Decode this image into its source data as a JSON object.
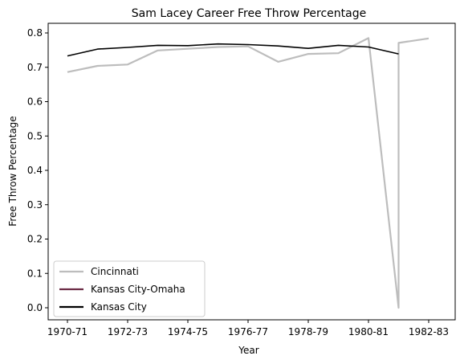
{
  "chart_data": {
    "type": "line",
    "title": "Sam Lacey Career Free Throw Percentage",
    "xlabel": "Year",
    "ylabel": "Free Throw Percentage",
    "x_tick_labels": [
      "1970-71",
      "1972-73",
      "1974-75",
      "1976-77",
      "1978-79",
      "1980-81",
      "1982-83"
    ],
    "y_tick_labels": [
      "0.0",
      "0.1",
      "0.2",
      "0.3",
      "0.4",
      "0.5",
      "0.6",
      "0.7",
      "0.8"
    ],
    "xlim": [
      "1970-71",
      "1982-83"
    ],
    "ylim": [
      0,
      0.8
    ],
    "grid": false,
    "legend_position": "lower-left",
    "series": [
      {
        "name": "Cincinnati",
        "color": "#bdbdbd",
        "points": [
          {
            "x": "1970-71",
            "y": 0.686
          },
          {
            "x": "1971-72",
            "y": 0.704
          },
          {
            "x": "1972-73",
            "y": 0.708
          },
          {
            "x": "1973-74",
            "y": 0.749
          },
          {
            "x": "1974-75",
            "y": 0.754
          },
          {
            "x": "1975-76",
            "y": 0.759
          },
          {
            "x": "1976-77",
            "y": 0.761
          },
          {
            "x": "1977-78",
            "y": 0.716
          },
          {
            "x": "1978-79",
            "y": 0.739
          },
          {
            "x": "1979-80",
            "y": 0.741
          },
          {
            "x": "1980-81",
            "y": 0.785
          },
          {
            "x": "1981-82",
            "y": 0.0
          },
          {
            "x": "1981-82",
            "y": 0.771
          },
          {
            "x": "1982-83",
            "y": 0.784
          }
        ]
      },
      {
        "name": "Kansas City-Omaha",
        "color": "#6b2a44",
        "points": []
      },
      {
        "name": "Kansas City",
        "color": "#000000",
        "points": [
          {
            "x": "1970-71",
            "y": 0.733
          },
          {
            "x": "1971-72",
            "y": 0.753
          },
          {
            "x": "1972-73",
            "y": 0.758
          },
          {
            "x": "1973-74",
            "y": 0.764
          },
          {
            "x": "1974-75",
            "y": 0.763
          },
          {
            "x": "1975-76",
            "y": 0.768
          },
          {
            "x": "1976-77",
            "y": 0.766
          },
          {
            "x": "1977-78",
            "y": 0.762
          },
          {
            "x": "1978-79",
            "y": 0.755
          },
          {
            "x": "1979-80",
            "y": 0.764
          },
          {
            "x": "1980-81",
            "y": 0.759
          },
          {
            "x": "1981-82",
            "y": 0.739
          }
        ]
      }
    ]
  }
}
